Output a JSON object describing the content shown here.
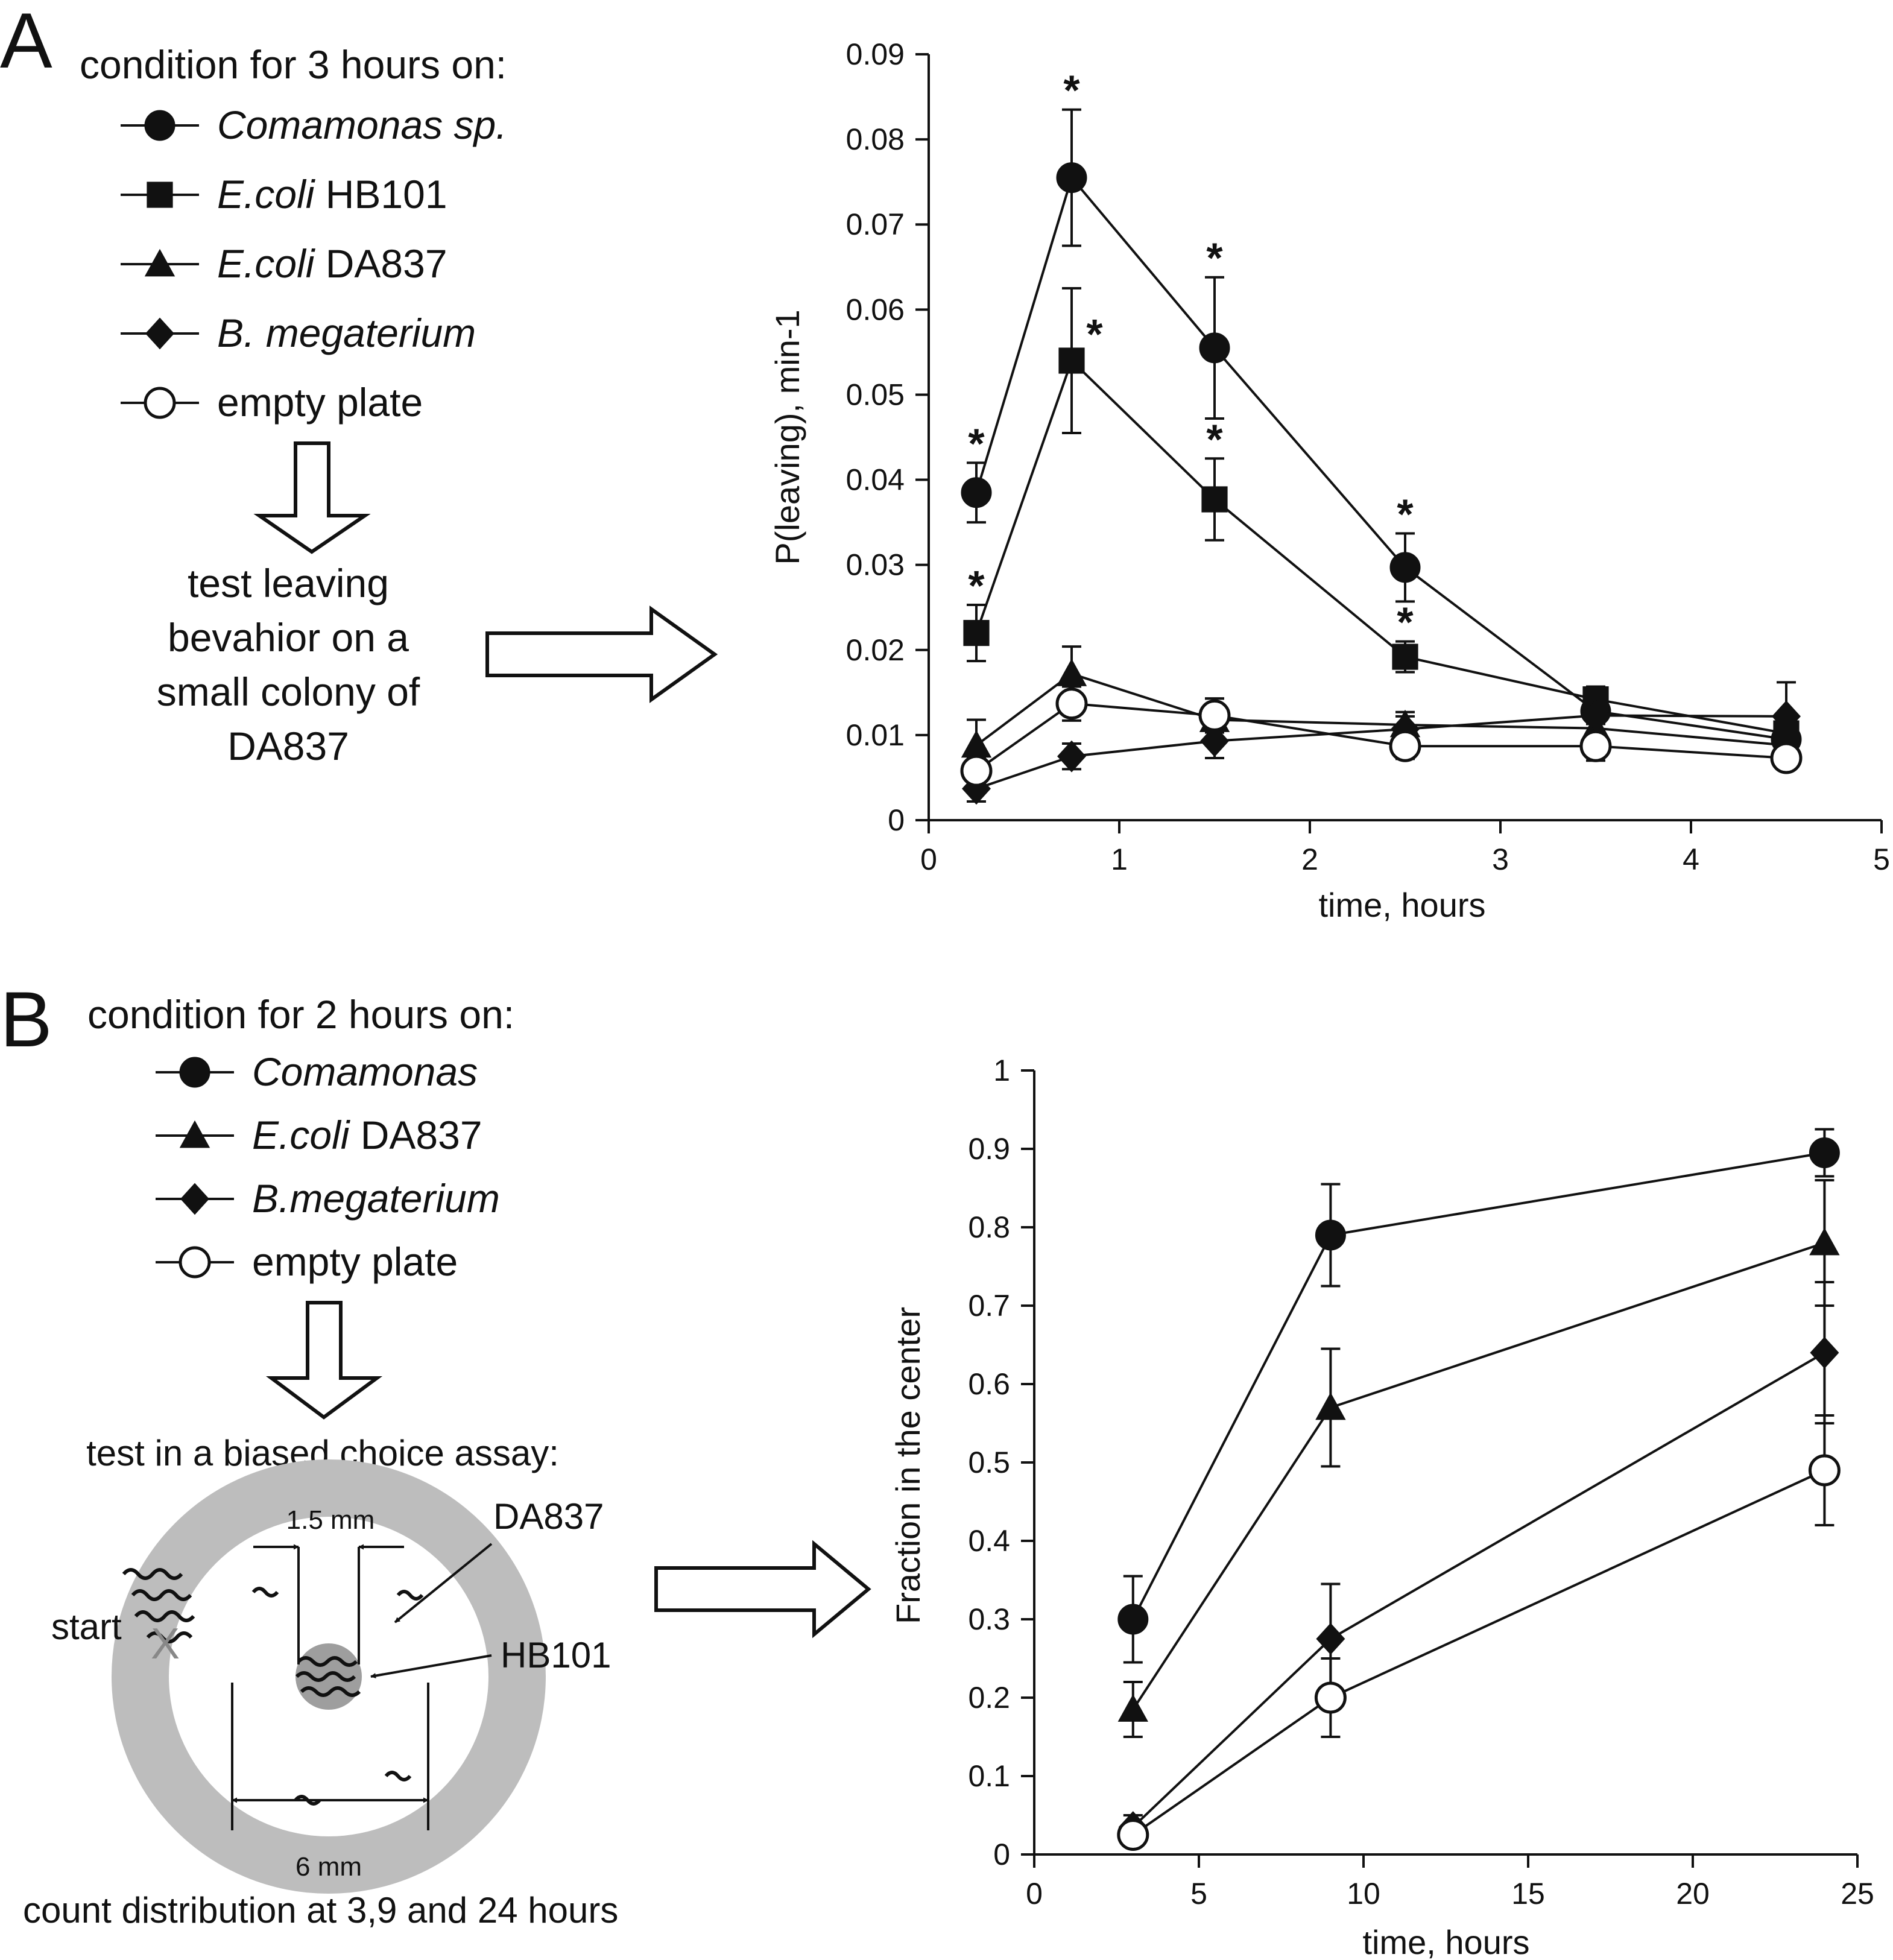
{
  "panel_a": {
    "letter": "A",
    "condition_title": "condition for 3 hours on:",
    "legend": [
      {
        "marker": "filled-circle",
        "italic": "Comamonas sp.",
        "plain": ""
      },
      {
        "marker": "filled-square",
        "italic": "E.coli",
        "plain": " HB101"
      },
      {
        "marker": "filled-triangle",
        "italic": "E.coli",
        "plain": " DA837"
      },
      {
        "marker": "filled-diamond",
        "italic": "B. megaterium",
        "plain": ""
      },
      {
        "marker": "open-circle",
        "italic": "",
        "plain": "empty plate"
      }
    ],
    "test_text": [
      "test leaving",
      "bevahior on a",
      "small colony of",
      "DA837"
    ]
  },
  "panel_b": {
    "letter": "B",
    "condition_title": "condition for 2 hours on:",
    "legend": [
      {
        "marker": "filled-circle",
        "italic": "Comamonas",
        "plain": ""
      },
      {
        "marker": "filled-triangle",
        "italic": "E.coli",
        "plain": " DA837"
      },
      {
        "marker": "filled-diamond",
        "italic": "B.megaterium",
        "plain": ""
      },
      {
        "marker": "open-circle",
        "italic": "",
        "plain": "empty plate"
      }
    ],
    "assay_title": "test in a biased choice assay:",
    "diagram": {
      "inner_width_label": "1.5 mm",
      "outer_width_label": "6 mm",
      "ring_label": "DA837",
      "center_label": "HB101",
      "start_label": "start",
      "start_marker": "X"
    },
    "count_text": "count distribution at 3,9 and 24 hours"
  },
  "chart_data": [
    {
      "type": "line",
      "title": "",
      "xlabel": "time, hours",
      "ylabel": "P(leaving), min-1",
      "xlim": [
        0,
        5
      ],
      "ylim": [
        0,
        0.09
      ],
      "xticks": [
        "0",
        "1",
        "2",
        "3",
        "4",
        "5"
      ],
      "yticks": [
        "0",
        "0.01",
        "0.02",
        "0.03",
        "0.04",
        "0.05",
        "0.06",
        "0.07",
        "0.08",
        "0.09"
      ],
      "grid": false,
      "series": [
        {
          "marker": "filled-circle",
          "x": [
            0.25,
            0.75,
            1.5,
            2.5,
            3.5,
            4.5
          ],
          "y": [
            0.0385,
            0.0755,
            0.0555,
            0.0297,
            0.0128,
            0.0095
          ],
          "err": [
            0.0035,
            0.008,
            0.0083,
            0.004,
            0.0015,
            0.0012
          ],
          "star": [
            true,
            true,
            true,
            true,
            false,
            false
          ]
        },
        {
          "marker": "filled-square",
          "x": [
            0.25,
            0.75,
            1.5,
            2.5,
            3.5,
            4.5
          ],
          "y": [
            0.022,
            0.054,
            0.0377,
            0.0192,
            0.0142,
            0.0102
          ],
          "err": [
            0.0033,
            0.0085,
            0.0048,
            0.0018,
            0.0015,
            0.0012
          ],
          "star": [
            true,
            true,
            true,
            true,
            false,
            false
          ]
        },
        {
          "marker": "filled-triangle",
          "x": [
            0.25,
            0.75,
            1.5,
            2.5,
            3.5,
            4.5
          ],
          "y": [
            0.0088,
            0.0172,
            0.0118,
            0.0112,
            0.0108,
            0.0088
          ],
          "err": [
            0.003,
            0.0032,
            0.0025,
            0.0015,
            0.0015,
            0.0012
          ],
          "star": [
            false,
            false,
            false,
            false,
            false,
            false
          ]
        },
        {
          "marker": "filled-diamond",
          "x": [
            0.25,
            0.75,
            1.5,
            2.5,
            3.5,
            4.5
          ],
          "y": [
            0.0037,
            0.0075,
            0.0093,
            0.0107,
            0.0123,
            0.0122
          ],
          "err": [
            0.0015,
            0.0015,
            0.002,
            0.0015,
            0.002,
            0.004
          ],
          "star": [
            false,
            false,
            false,
            false,
            false,
            false
          ]
        },
        {
          "marker": "open-circle",
          "x": [
            0.25,
            0.75,
            1.5,
            2.5,
            3.5,
            4.5
          ],
          "y": [
            0.0058,
            0.0137,
            0.0123,
            0.0087,
            0.0087,
            0.0073
          ],
          "err": [
            0.0015,
            0.002,
            0.002,
            0.0015,
            0.0017,
            0.0012
          ],
          "star": [
            false,
            false,
            false,
            false,
            false,
            false
          ]
        }
      ]
    },
    {
      "type": "line",
      "title": "",
      "xlabel": "time, hours",
      "ylabel": "Fraction in the center",
      "xlim": [
        0,
        25
      ],
      "ylim": [
        0,
        1
      ],
      "xticks": [
        "0",
        "5",
        "10",
        "15",
        "20",
        "25"
      ],
      "yticks": [
        "0",
        "0.1",
        "0.2",
        "0.3",
        "0.4",
        "0.5",
        "0.6",
        "0.7",
        "0.8",
        "0.9",
        "1"
      ],
      "grid": false,
      "series": [
        {
          "marker": "filled-circle",
          "x": [
            3,
            9,
            24
          ],
          "y": [
            0.3,
            0.79,
            0.895
          ],
          "err": [
            0.055,
            0.065,
            0.03
          ]
        },
        {
          "marker": "filled-triangle",
          "x": [
            3,
            9,
            24
          ],
          "y": [
            0.185,
            0.57,
            0.78
          ],
          "err": [
            0.035,
            0.075,
            0.08
          ]
        },
        {
          "marker": "filled-diamond",
          "x": [
            3,
            9,
            24
          ],
          "y": [
            0.035,
            0.275,
            0.64
          ],
          "err": [
            0.015,
            0.07,
            0.09
          ]
        },
        {
          "marker": "open-circle",
          "x": [
            3,
            9,
            24
          ],
          "y": [
            0.025,
            0.2,
            0.49
          ],
          "err": [
            0.01,
            0.05,
            0.07
          ]
        }
      ]
    }
  ]
}
